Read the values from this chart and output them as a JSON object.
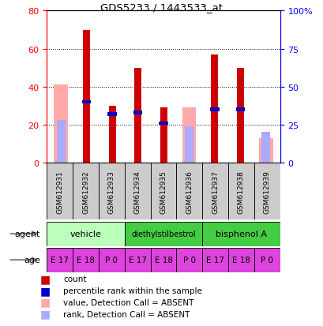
{
  "title": "GDS5233 / 1443533_at",
  "samples": [
    "GSM612931",
    "GSM612932",
    "GSM612933",
    "GSM612934",
    "GSM612935",
    "GSM612936",
    "GSM612937",
    "GSM612938",
    "GSM612939"
  ],
  "count_values": [
    0,
    70,
    30,
    50,
    29,
    0,
    57,
    50,
    0
  ],
  "percentile_values": [
    0,
    40,
    32,
    33,
    26,
    0,
    35,
    35,
    0
  ],
  "absent_value_values": [
    41,
    0,
    0,
    0,
    0,
    29,
    0,
    0,
    13
  ],
  "absent_rank_values": [
    28,
    0,
    0,
    0,
    0,
    24,
    0,
    0,
    20
  ],
  "count_color": "#cc0000",
  "percentile_color": "#0000cc",
  "absent_value_color": "#ffaaaa",
  "absent_rank_color": "#aaaaff",
  "ylim_left": [
    0,
    80
  ],
  "ylim_right": [
    0,
    100
  ],
  "yticks_left": [
    0,
    20,
    40,
    60,
    80
  ],
  "yticks_right": [
    0,
    25,
    50,
    75,
    100
  ],
  "ytick_labels_right": [
    "0",
    "25",
    "50",
    "75",
    "100%"
  ],
  "vehicle_color": "#bbffbb",
  "agent_color": "#44cc44",
  "age_color": "#dd44dd",
  "xlabel_area_color": "#cccccc",
  "agents": [
    {
      "label": "vehicle",
      "start": 0,
      "end": 3
    },
    {
      "label": "diethylstilbestrol",
      "start": 3,
      "end": 6
    },
    {
      "label": "bisphenol A",
      "start": 6,
      "end": 9
    }
  ],
  "ages": [
    "E 17",
    "E 18",
    "P 0",
    "E 17",
    "E 18",
    "P 0",
    "E 17",
    "E 18",
    "P 0"
  ]
}
